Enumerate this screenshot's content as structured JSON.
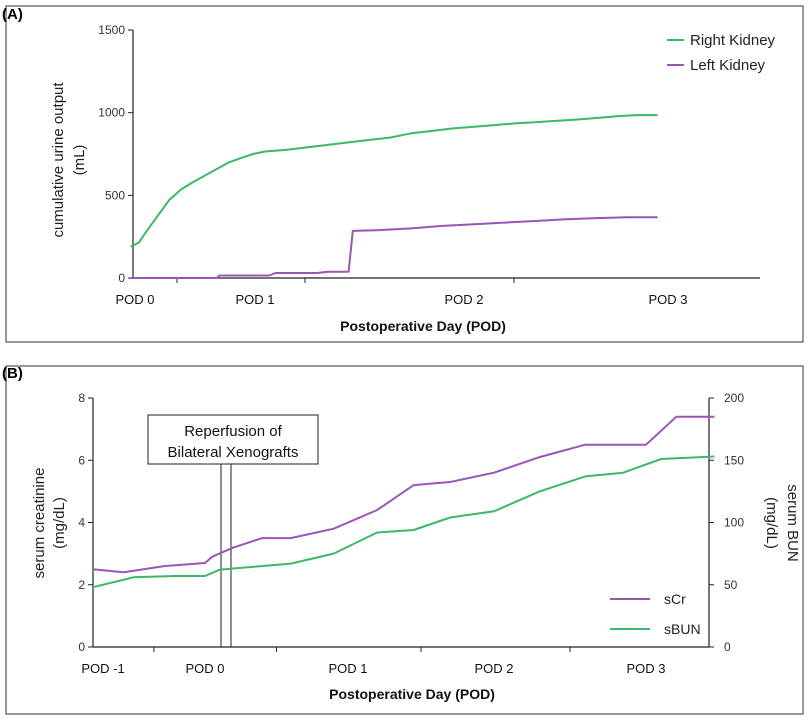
{
  "chart_data": [
    {
      "panel": "(A)",
      "type": "line",
      "ylabel_line1": "cumulative urine output",
      "ylabel_line2": "(mL)",
      "xlabel": "Postoperative Day (POD)",
      "xticks": [
        "POD 0",
        "POD 1",
        "POD 2",
        "POD 3"
      ],
      "xlim": [
        -0.1,
        3.2
      ],
      "ylim": [
        0,
        1500
      ],
      "yticks": [
        0,
        500,
        1000,
        1500
      ],
      "legend_position": "top-right",
      "series": [
        {
          "name": "Right Kidney",
          "color": "#3db86a",
          "points": [
            [
              -0.12,
              190
            ],
            [
              -0.05,
              215
            ],
            [
              0.0,
              270
            ],
            [
              0.1,
              370
            ],
            [
              0.2,
              470
            ],
            [
              0.3,
              535
            ],
            [
              0.4,
              580
            ],
            [
              0.5,
              620
            ],
            [
              0.6,
              660
            ],
            [
              0.7,
              700
            ],
            [
              0.8,
              725
            ],
            [
              0.9,
              750
            ],
            [
              1.0,
              765
            ],
            [
              1.1,
              775
            ],
            [
              1.2,
              790
            ],
            [
              1.3,
              805
            ],
            [
              1.4,
              820
            ],
            [
              1.5,
              835
            ],
            [
              1.6,
              850
            ],
            [
              1.7,
              875
            ],
            [
              1.8,
              890
            ],
            [
              1.9,
              905
            ],
            [
              2.0,
              915
            ],
            [
              2.1,
              925
            ],
            [
              2.2,
              935
            ],
            [
              2.3,
              942
            ],
            [
              2.4,
              950
            ],
            [
              2.5,
              958
            ],
            [
              2.6,
              968
            ],
            [
              2.7,
              978
            ],
            [
              2.8,
              985
            ],
            [
              2.9,
              985
            ]
          ]
        },
        {
          "name": "Left Kidney",
          "color": "#9b55b4",
          "points": [
            [
              -0.12,
              0
            ],
            [
              0.4,
              0
            ],
            [
              0.6,
              0
            ],
            [
              0.62,
              15
            ],
            [
              0.9,
              15
            ],
            [
              1.02,
              15
            ],
            [
              1.05,
              30
            ],
            [
              1.25,
              30
            ],
            [
              1.3,
              38
            ],
            [
              1.4,
              38
            ],
            [
              1.42,
              285
            ],
            [
              1.55,
              290
            ],
            [
              1.7,
              300
            ],
            [
              1.85,
              315
            ],
            [
              2.0,
              325
            ],
            [
              2.15,
              335
            ],
            [
              2.3,
              345
            ],
            [
              2.45,
              355
            ],
            [
              2.6,
              362
            ],
            [
              2.75,
              368
            ],
            [
              2.9,
              368
            ]
          ]
        }
      ]
    },
    {
      "panel": "(B)",
      "type": "line",
      "ylabel_left_line1": "serum creatinine",
      "ylabel_left_line2": "(mg/dL)",
      "ylabel_right_line1": "serum BUN",
      "ylabel_right_line2": "(mg/dL)",
      "xlabel": "Postoperative Day (POD)",
      "xticks": [
        "POD -1",
        "POD 0",
        "POD 1",
        "POD 2",
        "POD 3"
      ],
      "xlim": [
        -1.1,
        3.2
      ],
      "ylim_left": [
        0,
        8
      ],
      "yticks_left": [
        0,
        2,
        4,
        6,
        8
      ],
      "ylim_right": [
        0,
        200
      ],
      "yticks_right": [
        0,
        50,
        100,
        150,
        200
      ],
      "annotation": {
        "line1": "Reperfusion of",
        "line2": "Bilateral Xenografts",
        "x": 0.15
      },
      "legend_position": "bottom-right",
      "series": [
        {
          "name": "sCr",
          "axis": "left",
          "color": "#9b55b4",
          "points": [
            [
              -1.1,
              2.5
            ],
            [
              -0.8,
              2.4
            ],
            [
              -0.4,
              2.6
            ],
            [
              0.0,
              2.7
            ],
            [
              0.05,
              2.9
            ],
            [
              0.2,
              3.2
            ],
            [
              0.4,
              3.5
            ],
            [
              0.6,
              3.5
            ],
            [
              0.9,
              3.8
            ],
            [
              1.2,
              4.4
            ],
            [
              1.45,
              5.2
            ],
            [
              1.7,
              5.3
            ],
            [
              2.0,
              5.6
            ],
            [
              2.3,
              6.1
            ],
            [
              2.6,
              6.5
            ],
            [
              2.85,
              6.5
            ],
            [
              3.0,
              6.5
            ],
            [
              3.2,
              7.4
            ],
            [
              3.45,
              7.4
            ]
          ]
        },
        {
          "name": "sBUN",
          "axis": "right",
          "color": "#3db86a",
          "points": [
            [
              -1.1,
              48
            ],
            [
              -0.7,
              56
            ],
            [
              -0.3,
              57
            ],
            [
              0.0,
              57
            ],
            [
              0.1,
              62
            ],
            [
              0.3,
              64
            ],
            [
              0.6,
              67
            ],
            [
              0.9,
              75
            ],
            [
              1.2,
              92
            ],
            [
              1.45,
              94
            ],
            [
              1.7,
              104
            ],
            [
              2.0,
              109
            ],
            [
              2.3,
              125
            ],
            [
              2.6,
              137
            ],
            [
              2.85,
              140
            ],
            [
              3.1,
              151
            ],
            [
              3.45,
              153
            ]
          ]
        }
      ]
    }
  ]
}
